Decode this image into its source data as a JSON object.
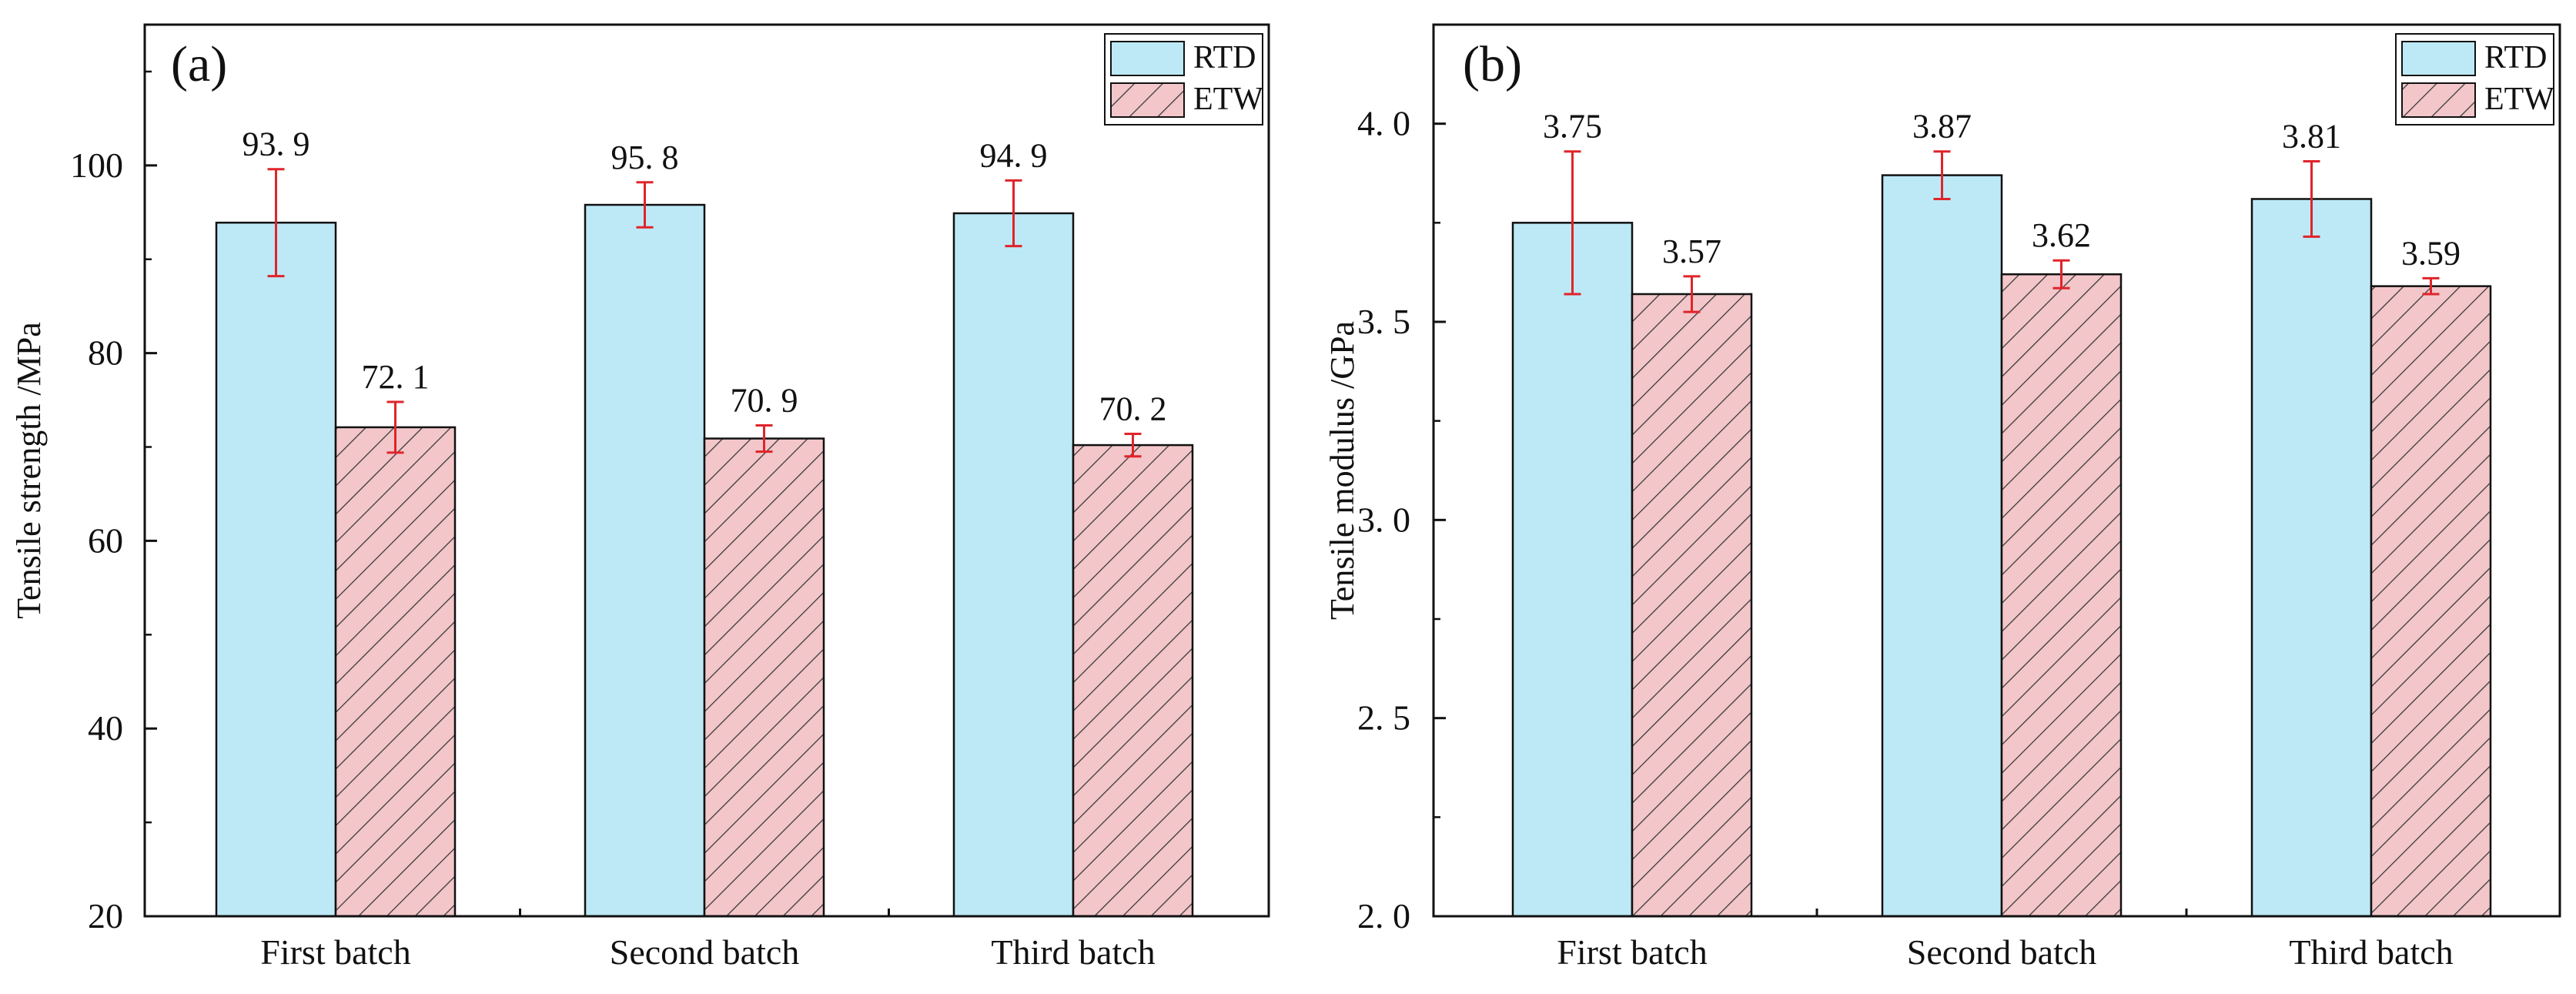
{
  "chart_data": [
    {
      "type": "bar",
      "panel": "(a)",
      "ylabel": "Tensile strength /MPa",
      "xlabel": "",
      "ylim": [
        20,
        115
      ],
      "yticks": [
        20,
        40,
        60,
        80,
        100
      ],
      "ytick_labels": [
        "20",
        "40",
        "60",
        "80",
        "100"
      ],
      "categories": [
        "First batch",
        "Second batch",
        "Third batch"
      ],
      "series": [
        {
          "name": "RTD",
          "values": [
            93.9,
            95.8,
            94.9
          ],
          "errors": [
            5.7,
            2.4,
            3.5
          ],
          "labels": [
            "93. 9",
            "95. 8",
            "94. 9"
          ]
        },
        {
          "name": "ETW",
          "values": [
            72.1,
            70.9,
            70.2
          ],
          "errors": [
            2.7,
            1.4,
            1.2
          ],
          "labels": [
            "72. 1",
            "70. 9",
            "70. 2"
          ]
        }
      ],
      "legend_position": "top-right"
    },
    {
      "type": "bar",
      "panel": "(b)",
      "ylabel": "Tensile modulus /GPa",
      "xlabel": "",
      "ylim": [
        2.0,
        4.25
      ],
      "yticks": [
        2.0,
        2.5,
        3.0,
        3.5,
        4.0
      ],
      "ytick_labels": [
        "2. 0",
        "2. 5",
        "3. 0",
        "3. 5",
        "4. 0"
      ],
      "categories": [
        "First batch",
        "Second batch",
        "Third batch"
      ],
      "series": [
        {
          "name": "RTD",
          "values": [
            3.75,
            3.87,
            3.81
          ],
          "errors": [
            0.18,
            0.06,
            0.095
          ],
          "labels": [
            "3.75",
            "3.87",
            "3.81"
          ]
        },
        {
          "name": "ETW",
          "values": [
            3.57,
            3.62,
            3.59
          ],
          "errors": [
            0.045,
            0.035,
            0.02
          ],
          "labels": [
            "3.57",
            "3.62",
            "3.59"
          ]
        }
      ],
      "legend_position": "top-right"
    }
  ],
  "style": {
    "rtd_fill": "#bde9f7",
    "etw_fill": "#f3c6c9",
    "etw_hatch": "#3a3a3a",
    "error_color": "#e0242a",
    "axis_color": "#111111"
  }
}
